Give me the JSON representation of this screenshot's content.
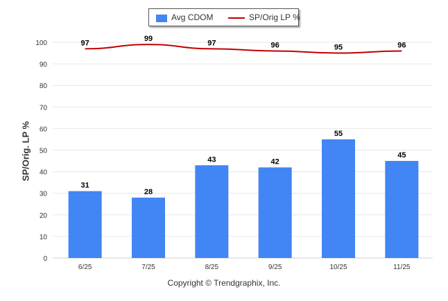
{
  "chart_data": {
    "type": "bar",
    "categories": [
      "6/25",
      "7/25",
      "8/25",
      "9/25",
      "10/25",
      "11/25"
    ],
    "series": [
      {
        "name": "Avg CDOM",
        "type": "bar",
        "values": [
          31,
          28,
          43,
          42,
          55,
          45
        ]
      },
      {
        "name": "SP/Orig LP %",
        "type": "line",
        "values": [
          97,
          99,
          97,
          96,
          95,
          96
        ]
      }
    ],
    "ylabel": "SP/Orig. LP %",
    "xlabel": "",
    "ylim": [
      0,
      100
    ],
    "yticks": [
      0,
      10,
      20,
      30,
      40,
      50,
      60,
      70,
      80,
      90,
      100
    ],
    "grid": true,
    "legend_position": "top-center",
    "colors": {
      "bar": "#4285f4",
      "line": "#c00000",
      "grid": "#e6e6e6",
      "text": "#333333"
    }
  },
  "footer": {
    "copyright": "Copyright © Trendgraphix, Inc."
  }
}
